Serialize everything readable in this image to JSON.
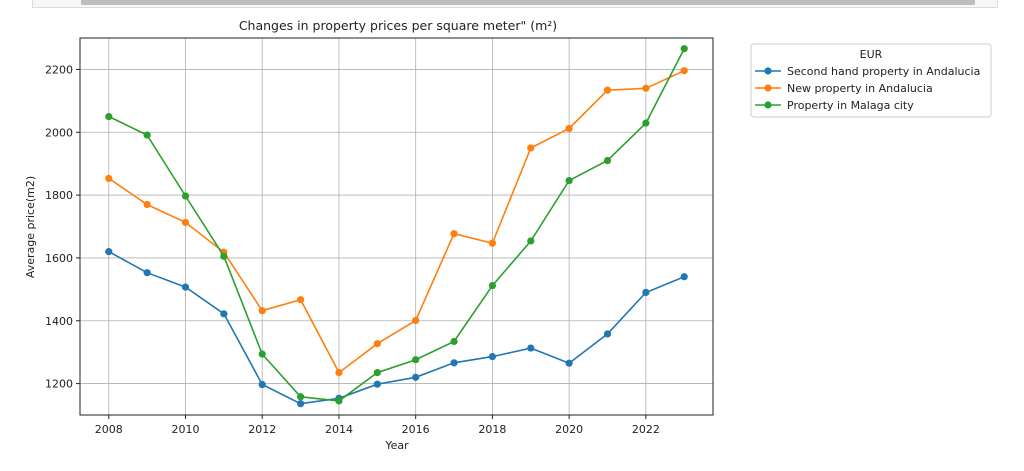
{
  "chart_data": {
    "type": "line",
    "title": "Changes in property prices per square meter\" (m²)",
    "xlabel": "Year",
    "ylabel": "Average price(m2)",
    "xlim": [
      2007.25,
      2023.75
    ],
    "ylim": [
      1100,
      2300
    ],
    "x_ticks": [
      2008,
      2010,
      2012,
      2014,
      2016,
      2018,
      2020,
      2022
    ],
    "y_ticks": [
      1200,
      1400,
      1600,
      1800,
      2000,
      2200
    ],
    "grid": true,
    "legend": {
      "title": "EUR",
      "placement": "outside-top-right"
    },
    "x": [
      2008,
      2009,
      2010,
      2011,
      2012,
      2013,
      2014,
      2015,
      2016,
      2017,
      2018,
      2019,
      2020,
      2021,
      2022,
      2023
    ],
    "series": [
      {
        "name": "Second hand property in Andalucia",
        "color": "#1f77b4",
        "values": [
          1620,
          1553,
          1507,
          1422,
          1197,
          1136,
          1153,
          1198,
          1220,
          1266,
          1286,
          1313,
          1265,
          1358,
          1490,
          1540
        ]
      },
      {
        "name": "New property in Andalucia",
        "color": "#ff7f0e",
        "values": [
          1853,
          1770,
          1713,
          1618,
          1432,
          1467,
          1235,
          1327,
          1401,
          1677,
          1647,
          1950,
          2012,
          2134,
          2140,
          2196
        ]
      },
      {
        "name": "Property in Malaga city",
        "color": "#2ca02c",
        "values": [
          2050,
          1991,
          1797,
          1605,
          1294,
          1158,
          1145,
          1235,
          1276,
          1334,
          1512,
          1654,
          1846,
          1910,
          2029,
          2266
        ]
      }
    ]
  }
}
